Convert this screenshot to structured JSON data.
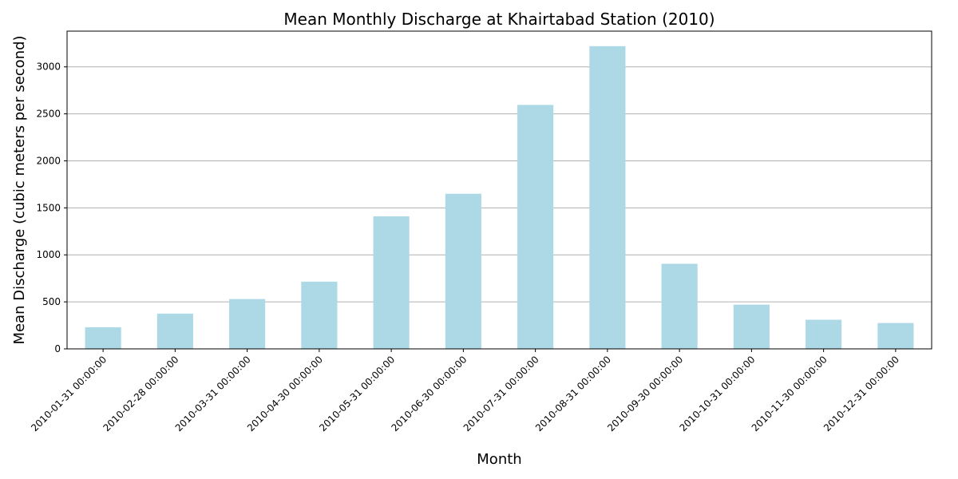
{
  "chart_data": {
    "type": "bar",
    "title": "Mean Monthly Discharge at Khairtabad Station (2010)",
    "xlabel": "Month",
    "ylabel": "Mean Discharge (cubic meters per second)",
    "categories": [
      "2010-01-31 00:00:00",
      "2010-02-28 00:00:00",
      "2010-03-31 00:00:00",
      "2010-04-30 00:00:00",
      "2010-05-31 00:00:00",
      "2010-06-30 00:00:00",
      "2010-07-31 00:00:00",
      "2010-08-31 00:00:00",
      "2010-09-30 00:00:00",
      "2010-10-31 00:00:00",
      "2010-11-30 00:00:00",
      "2010-12-31 00:00:00"
    ],
    "values": [
      230,
      375,
      530,
      715,
      1410,
      1650,
      2595,
      3220,
      905,
      470,
      310,
      275
    ],
    "ylim": [
      0,
      3380
    ],
    "yticks": [
      0,
      500,
      1000,
      1500,
      2000,
      2500,
      3000
    ],
    "grid": "y-major",
    "legend": "none",
    "colors": {
      "bar": "#add8e6",
      "grid": "#b0b0b0",
      "axis": "#000000"
    }
  }
}
